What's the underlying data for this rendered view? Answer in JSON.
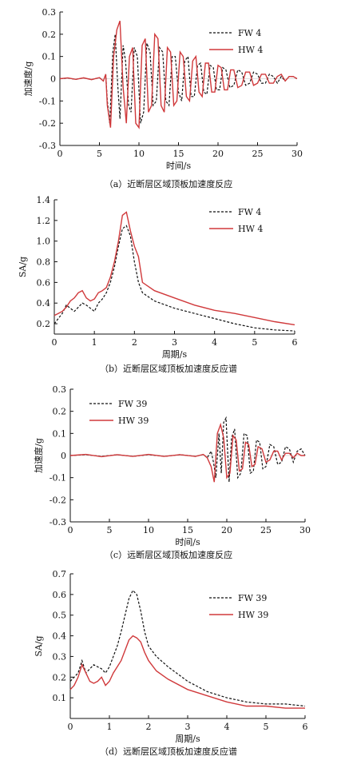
{
  "colors": {
    "fw": "#111111",
    "hw": "#d0393b",
    "raw": "#cccccc"
  },
  "chart_data": [
    {
      "type": "line",
      "caption": "（a）近断层区域顶板加速度反应",
      "xlabel": "时间/s",
      "ylabel": "加速度/g",
      "xlim": [
        0,
        30
      ],
      "ylim": [
        -0.3,
        0.3
      ],
      "xticks": [
        0,
        5,
        10,
        15,
        20,
        25,
        30
      ],
      "yticks": [
        -0.3,
        -0.2,
        -0.1,
        0,
        0.1,
        0.2,
        0.3
      ],
      "yticklabels": [
        "-0.3",
        "-0.2",
        "-0.1",
        "0",
        "0.1",
        "0.2",
        "0.3"
      ],
      "legend_position": "top-right",
      "series": [
        {
          "name": "FW 4",
          "style": "dashed",
          "x": [
            0,
            1,
            2,
            3,
            4,
            5,
            5.5,
            5.8,
            6.0,
            6.3,
            6.7,
            7.0,
            7.3,
            7.6,
            8.0,
            8.3,
            8.7,
            9.0,
            9.4,
            9.8,
            10.2,
            10.6,
            11.0,
            11.4,
            11.8,
            12.2,
            12.6,
            13.0,
            13.4,
            13.8,
            14.2,
            14.6,
            15.0,
            15.4,
            15.8,
            16.2,
            16.6,
            17.0,
            17.4,
            17.8,
            18.2,
            18.6,
            19.0,
            19.4,
            19.8,
            20.2,
            20.6,
            21.0,
            21.5,
            22.0,
            22.5,
            23.0,
            23.5,
            24.0,
            24.5,
            25.0,
            25.5,
            26.0,
            26.5,
            27.0,
            27.5,
            28.0,
            28.5,
            29.0,
            29.5,
            30
          ],
          "y": [
            0,
            0.003,
            -0.003,
            0.004,
            -0.004,
            0.005,
            -0.01,
            0.02,
            -0.1,
            -0.2,
            0.12,
            0.2,
            -0.02,
            -0.18,
            0.15,
            0.08,
            -0.12,
            -0.15,
            0.14,
            0.1,
            -0.2,
            -0.15,
            0.16,
            0.12,
            -0.12,
            -0.1,
            0.14,
            0.12,
            -0.1,
            -0.12,
            0.1,
            0.1,
            -0.06,
            -0.1,
            0.08,
            0.1,
            -0.08,
            -0.08,
            0.06,
            0.07,
            -0.06,
            -0.07,
            0.06,
            0.05,
            -0.05,
            -0.05,
            0.05,
            0.04,
            -0.04,
            -0.03,
            0.04,
            0.03,
            -0.03,
            -0.02,
            0.03,
            0.02,
            -0.02,
            -0.02,
            0.02,
            0.01,
            -0.02,
            0.01,
            -0.01,
            0.01,
            0.01,
            0
          ]
        },
        {
          "name": "HW 4",
          "style": "solid",
          "x": [
            0,
            1,
            2,
            3,
            4,
            5,
            5.5,
            5.8,
            6.0,
            6.4,
            6.8,
            7.2,
            7.6,
            8.0,
            8.4,
            8.8,
            9.2,
            9.6,
            10.0,
            10.4,
            10.8,
            11.2,
            11.6,
            12.0,
            12.4,
            12.8,
            13.2,
            13.6,
            14.0,
            14.4,
            14.8,
            15.2,
            15.6,
            16.0,
            16.4,
            16.8,
            17.2,
            17.6,
            18.0,
            18.4,
            18.8,
            19.2,
            19.6,
            20.0,
            20.4,
            20.8,
            21.2,
            21.6,
            22.0,
            22.5,
            23.0,
            23.5,
            24.0,
            24.5,
            25.0,
            25.5,
            26.0,
            26.5,
            27.0,
            27.5,
            28.0,
            28.5,
            29.0,
            29.5,
            30
          ],
          "y": [
            0,
            0.004,
            -0.003,
            0.004,
            -0.004,
            0.005,
            -0.01,
            0.02,
            -0.12,
            -0.22,
            0.1,
            0.22,
            0.26,
            -0.04,
            -0.2,
            0.1,
            0.14,
            -0.2,
            -0.22,
            0.15,
            0.18,
            -0.15,
            -0.12,
            0.2,
            0.18,
            -0.12,
            -0.15,
            0.14,
            0.12,
            -0.12,
            -0.1,
            0.12,
            0.1,
            -0.08,
            -0.1,
            0.08,
            0.1,
            -0.06,
            -0.08,
            0.07,
            0.07,
            -0.06,
            -0.06,
            0.06,
            0.05,
            -0.05,
            -0.05,
            0.04,
            0.04,
            -0.04,
            -0.03,
            0.03,
            0.03,
            -0.03,
            -0.02,
            0.02,
            0.02,
            -0.02,
            -0.02,
            0.01,
            0.02,
            -0.01,
            0.01,
            0.01,
            0
          ]
        }
      ]
    },
    {
      "type": "line",
      "caption": "（b）近断层区域顶板加速度反应谱",
      "xlabel": "周期/s",
      "ylabel": "SA/g",
      "xlim": [
        0,
        6
      ],
      "ylim": [
        0.1,
        1.4
      ],
      "xticks": [
        0,
        1,
        2,
        3,
        4,
        5,
        6
      ],
      "yticks": [
        0.2,
        0.4,
        0.6,
        0.8,
        1.0,
        1.2,
        1.4
      ],
      "yticklabels": [
        "0.2",
        "0.4",
        "0.6",
        "0.8",
        "1.0",
        "1.2",
        "1.4"
      ],
      "legend_position": "top-right",
      "series": [
        {
          "name": "FW 4",
          "style": "dashed",
          "x": [
            0,
            0.1,
            0.2,
            0.3,
            0.4,
            0.5,
            0.6,
            0.7,
            0.8,
            0.9,
            1.0,
            1.1,
            1.2,
            1.3,
            1.4,
            1.5,
            1.6,
            1.7,
            1.8,
            1.9,
            2.0,
            2.1,
            2.2,
            2.5,
            3.0,
            3.5,
            4.0,
            4.5,
            5.0,
            5.5,
            6.0
          ],
          "y": [
            0.2,
            0.25,
            0.3,
            0.38,
            0.35,
            0.32,
            0.36,
            0.4,
            0.38,
            0.35,
            0.32,
            0.4,
            0.44,
            0.5,
            0.6,
            0.75,
            0.95,
            1.12,
            1.15,
            1.05,
            0.8,
            0.6,
            0.5,
            0.42,
            0.35,
            0.3,
            0.25,
            0.2,
            0.16,
            0.14,
            0.13
          ]
        },
        {
          "name": "HW 4",
          "style": "solid",
          "x": [
            0,
            0.1,
            0.2,
            0.3,
            0.4,
            0.5,
            0.6,
            0.7,
            0.8,
            0.9,
            1.0,
            1.1,
            1.2,
            1.3,
            1.4,
            1.5,
            1.6,
            1.7,
            1.8,
            1.9,
            2.0,
            2.1,
            2.2,
            2.5,
            3.0,
            3.5,
            4.0,
            4.5,
            5.0,
            5.5,
            6.0
          ],
          "y": [
            0.28,
            0.3,
            0.32,
            0.36,
            0.42,
            0.45,
            0.5,
            0.52,
            0.45,
            0.42,
            0.44,
            0.5,
            0.52,
            0.55,
            0.65,
            0.8,
            1.0,
            1.25,
            1.28,
            1.1,
            0.95,
            0.85,
            0.6,
            0.52,
            0.45,
            0.38,
            0.33,
            0.3,
            0.26,
            0.22,
            0.19
          ]
        }
      ]
    },
    {
      "type": "line",
      "caption": "（c）远断层区域顶板加速度反应",
      "xlabel": "时间/s",
      "ylabel": "加速度/g",
      "xlim": [
        0,
        30
      ],
      "ylim": [
        -0.3,
        0.3
      ],
      "xticks": [
        0,
        5,
        10,
        15,
        20,
        25,
        30
      ],
      "yticks": [
        -0.3,
        -0.2,
        -0.1,
        0,
        0.1,
        0.2,
        0.3
      ],
      "yticklabels": [
        "-0.3",
        "-0.2",
        "-0.1",
        "0",
        "0.1",
        "0.2",
        "0.3"
      ],
      "legend_position": "top-left",
      "series": [
        {
          "name": "FW 39",
          "style": "dashed",
          "x": [
            0,
            2,
            4,
            6,
            8,
            10,
            12,
            14,
            16,
            17,
            17.5,
            18.0,
            18.3,
            18.6,
            19.0,
            19.3,
            19.6,
            19.9,
            20.3,
            20.6,
            21.0,
            21.4,
            21.8,
            22.2,
            22.6,
            23.0,
            23.4,
            23.8,
            24.2,
            24.6,
            25.0,
            25.5,
            26.0,
            26.5,
            27.0,
            27.5,
            28.0,
            28.5,
            29.0,
            29.5,
            30
          ],
          "y": [
            0,
            0.004,
            -0.004,
            0.004,
            -0.004,
            0.004,
            -0.004,
            0.004,
            -0.004,
            0.005,
            -0.01,
            0.02,
            -0.03,
            -0.1,
            0.1,
            -0.08,
            0.15,
            0.17,
            -0.12,
            0.08,
            0.12,
            -0.1,
            -0.08,
            0.1,
            0.09,
            -0.08,
            -0.07,
            0.07,
            0.06,
            -0.06,
            -0.05,
            0.05,
            0.04,
            -0.04,
            -0.03,
            0.04,
            0.03,
            -0.03,
            0.02,
            0.03,
            0
          ]
        },
        {
          "name": "HW 39",
          "style": "solid",
          "x": [
            0,
            2,
            4,
            6,
            8,
            10,
            12,
            14,
            16,
            17,
            17.5,
            18.0,
            18.4,
            18.8,
            19.2,
            19.6,
            20.0,
            20.4,
            20.8,
            21.2,
            21.6,
            22.0,
            22.4,
            22.8,
            23.2,
            23.6,
            24.0,
            24.5,
            25.0,
            25.5,
            26.0,
            26.5,
            27.0,
            27.5,
            28.0,
            28.5,
            29.0,
            29.5,
            30
          ],
          "y": [
            0,
            0.005,
            -0.005,
            0.004,
            -0.004,
            0.005,
            -0.004,
            0.004,
            -0.004,
            0.005,
            -0.01,
            -0.05,
            -0.12,
            0.1,
            0.14,
            0.08,
            -0.1,
            -0.08,
            0.09,
            0.07,
            -0.07,
            -0.06,
            0.06,
            0.05,
            -0.05,
            -0.04,
            0.04,
            0.03,
            -0.03,
            -0.02,
            0.02,
            0.02,
            -0.02,
            0.01,
            0.01,
            -0.01,
            0.01,
            0,
            0
          ]
        }
      ]
    },
    {
      "type": "line",
      "caption": "（d）远断层区域顶板加速度反应谱",
      "xlabel": "周期/s",
      "ylabel": "SA/g",
      "xlim": [
        0,
        6
      ],
      "ylim": [
        0.0,
        0.7
      ],
      "xticks": [
        0,
        1,
        2,
        3,
        4,
        5,
        6
      ],
      "yticks": [
        0.1,
        0.2,
        0.3,
        0.4,
        0.5,
        0.6,
        0.7
      ],
      "yticklabels": [
        "0.1",
        "0.2",
        "0.3",
        "0.4",
        "0.5",
        "0.6",
        "0.7"
      ],
      "legend_position": "top-right",
      "series": [
        {
          "name": "FW 39",
          "style": "dashed",
          "x": [
            0,
            0.1,
            0.2,
            0.3,
            0.4,
            0.5,
            0.6,
            0.7,
            0.8,
            0.9,
            1.0,
            1.1,
            1.2,
            1.3,
            1.4,
            1.5,
            1.6,
            1.7,
            1.8,
            1.9,
            2.0,
            2.2,
            2.5,
            3.0,
            3.5,
            4.0,
            4.5,
            5.0,
            5.5,
            6.0
          ],
          "y": [
            0.18,
            0.2,
            0.22,
            0.28,
            0.22,
            0.24,
            0.26,
            0.25,
            0.24,
            0.22,
            0.25,
            0.3,
            0.35,
            0.42,
            0.5,
            0.58,
            0.62,
            0.6,
            0.52,
            0.42,
            0.35,
            0.3,
            0.25,
            0.18,
            0.13,
            0.1,
            0.08,
            0.07,
            0.07,
            0.06
          ]
        },
        {
          "name": "HW 39",
          "style": "solid",
          "x": [
            0,
            0.1,
            0.2,
            0.3,
            0.4,
            0.5,
            0.6,
            0.7,
            0.8,
            0.9,
            1.0,
            1.1,
            1.2,
            1.3,
            1.4,
            1.5,
            1.6,
            1.7,
            1.8,
            1.9,
            2.0,
            2.2,
            2.5,
            3.0,
            3.5,
            4.0,
            4.5,
            5.0,
            5.5,
            6.0
          ],
          "y": [
            0.14,
            0.16,
            0.2,
            0.26,
            0.22,
            0.18,
            0.17,
            0.18,
            0.2,
            0.16,
            0.18,
            0.22,
            0.25,
            0.28,
            0.33,
            0.38,
            0.4,
            0.39,
            0.37,
            0.32,
            0.28,
            0.23,
            0.19,
            0.14,
            0.11,
            0.08,
            0.06,
            0.06,
            0.05,
            0.05
          ]
        }
      ]
    }
  ]
}
